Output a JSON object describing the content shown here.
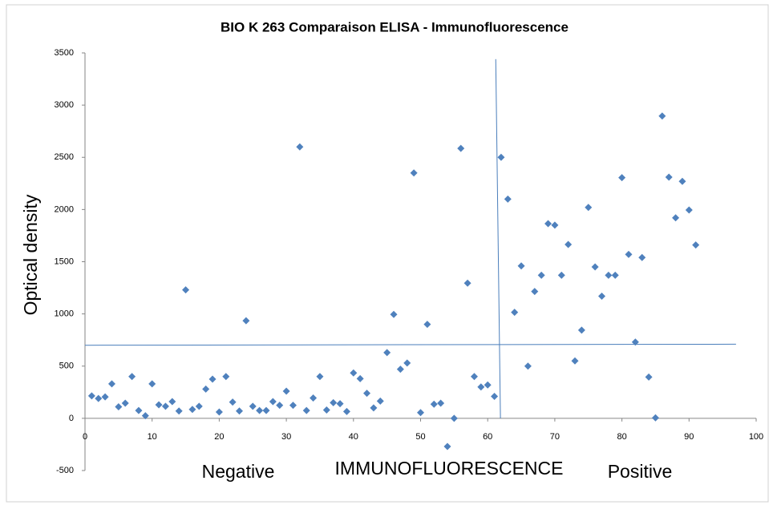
{
  "chart_data": {
    "type": "scatter",
    "title": "BIO K 263 Comparaison ELISA - Immunofluorescence",
    "y_label": "Optical density",
    "annotations": [
      "Negative",
      "IMMUNOFLUORESCENCE",
      "Positive"
    ],
    "color": "#4f81bd",
    "line_color": "#4a7ebb",
    "xlim": [
      0,
      100
    ],
    "xticks": [
      0,
      10,
      20,
      30,
      40,
      50,
      60,
      70,
      80,
      90,
      100
    ],
    "ylim": [
      -500,
      3500
    ],
    "yticks": [
      -500,
      0,
      500,
      1000,
      1500,
      2000,
      2500,
      3000,
      3500
    ],
    "x": [
      1,
      2,
      3,
      4,
      5,
      6,
      7,
      8,
      9,
      10,
      11,
      12,
      13,
      14,
      15,
      16,
      17,
      18,
      19,
      20,
      21,
      22,
      23,
      24,
      25,
      26,
      27,
      28,
      29,
      30,
      31,
      32,
      33,
      34,
      35,
      36,
      37,
      38,
      39,
      40,
      41,
      42,
      43,
      44,
      45,
      46,
      47,
      48,
      49,
      50,
      51,
      52,
      53,
      54,
      55,
      56,
      57,
      58,
      59,
      60,
      61,
      62,
      63,
      64,
      65,
      66,
      67,
      68,
      69,
      70,
      71,
      72,
      73,
      74,
      75,
      76,
      77,
      78,
      79,
      80,
      81,
      82,
      83,
      84,
      85,
      86,
      87,
      88,
      89,
      90,
      91
    ],
    "values": [
      215,
      190,
      205,
      330,
      110,
      145,
      400,
      75,
      25,
      330,
      130,
      115,
      160,
      70,
      1230,
      85,
      115,
      280,
      375,
      60,
      400,
      155,
      70,
      935,
      115,
      75,
      75,
      160,
      125,
      260,
      125,
      2600,
      75,
      195,
      400,
      80,
      150,
      140,
      65,
      435,
      380,
      240,
      100,
      165,
      630,
      995,
      470,
      530,
      2350,
      55,
      900,
      135,
      145,
      -270,
      0,
      2585,
      1295,
      400,
      300,
      320,
      210,
      2500,
      2100,
      1015,
      1460,
      500,
      1215,
      1370,
      1865,
      1850,
      1370,
      1665,
      550,
      845,
      2020,
      1450,
      1170,
      1370,
      1370,
      2305,
      1570,
      730,
      1540,
      395,
      5,
      2895,
      2310,
      1920,
      2270,
      1995,
      1660
    ],
    "reference_lines": [
      {
        "x": [
          0,
          97
        ],
        "y": [
          700,
          710
        ]
      },
      {
        "x": [
          61.2,
          61.9
        ],
        "y": [
          3440,
          0
        ]
      }
    ]
  }
}
